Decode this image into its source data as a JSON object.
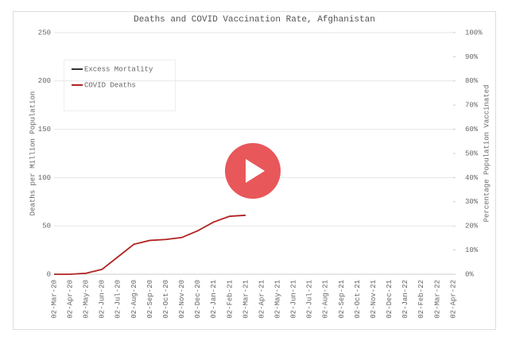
{
  "chart_data": {
    "type": "line",
    "title": "Deaths and COVID Vaccination Rate, Afghanistan",
    "y_label": "Deaths per Million Population",
    "y2_label": "Percentage Population Vaccinated",
    "categories": [
      "02-Mar-20",
      "02-Apr-20",
      "02-May-20",
      "02-Jun-20",
      "02-Jul-20",
      "02-Aug-20",
      "02-Sep-20",
      "02-Oct-20",
      "02-Nov-20",
      "02-Dec-20",
      "02-Jan-21",
      "02-Feb-21",
      "02-Mar-21",
      "02-Apr-21",
      "02-May-21",
      "02-Jun-21",
      "02-Jul-21",
      "02-Aug-21",
      "02-Sep-21",
      "02-Oct-21",
      "02-Nov-21",
      "02-Dec-21",
      "02-Jan-22",
      "02-Feb-22",
      "02-Mar-22",
      "02-Apr-22"
    ],
    "series": [
      {
        "name": "Excess Mortality",
        "color": "#333333",
        "values": [
          null,
          null,
          null,
          null,
          null,
          null,
          null,
          null,
          null,
          null,
          null,
          null,
          null,
          null,
          null,
          null,
          null,
          null,
          null,
          null,
          null,
          null,
          null,
          null,
          null,
          null
        ]
      },
      {
        "name": "COVID Deaths",
        "color": "#b22222",
        "values": [
          0,
          0,
          1,
          5,
          18,
          31,
          35,
          36,
          38,
          45,
          54,
          60,
          61,
          null,
          null,
          null,
          null,
          null,
          null,
          null,
          null,
          null,
          null,
          null,
          null,
          null
        ]
      }
    ],
    "ylim": [
      0,
      250
    ],
    "yticks": [
      0,
      50,
      100,
      150,
      200,
      250
    ],
    "y2lim": [
      0,
      100
    ],
    "y2ticks": [
      {
        "value": 0,
        "label": "0%"
      },
      {
        "value": 10,
        "label": "10%"
      },
      {
        "value": 20,
        "label": "20%"
      },
      {
        "value": 30,
        "label": "30%"
      },
      {
        "value": 40,
        "label": "40%"
      },
      {
        "value": 50,
        "label": "50%"
      },
      {
        "value": 60,
        "label": "60%"
      },
      {
        "value": 70,
        "label": "70%"
      },
      {
        "value": 80,
        "label": "80%"
      },
      {
        "value": 90,
        "label": "90%"
      },
      {
        "value": 100,
        "label": "100%"
      }
    ],
    "grid": true
  }
}
